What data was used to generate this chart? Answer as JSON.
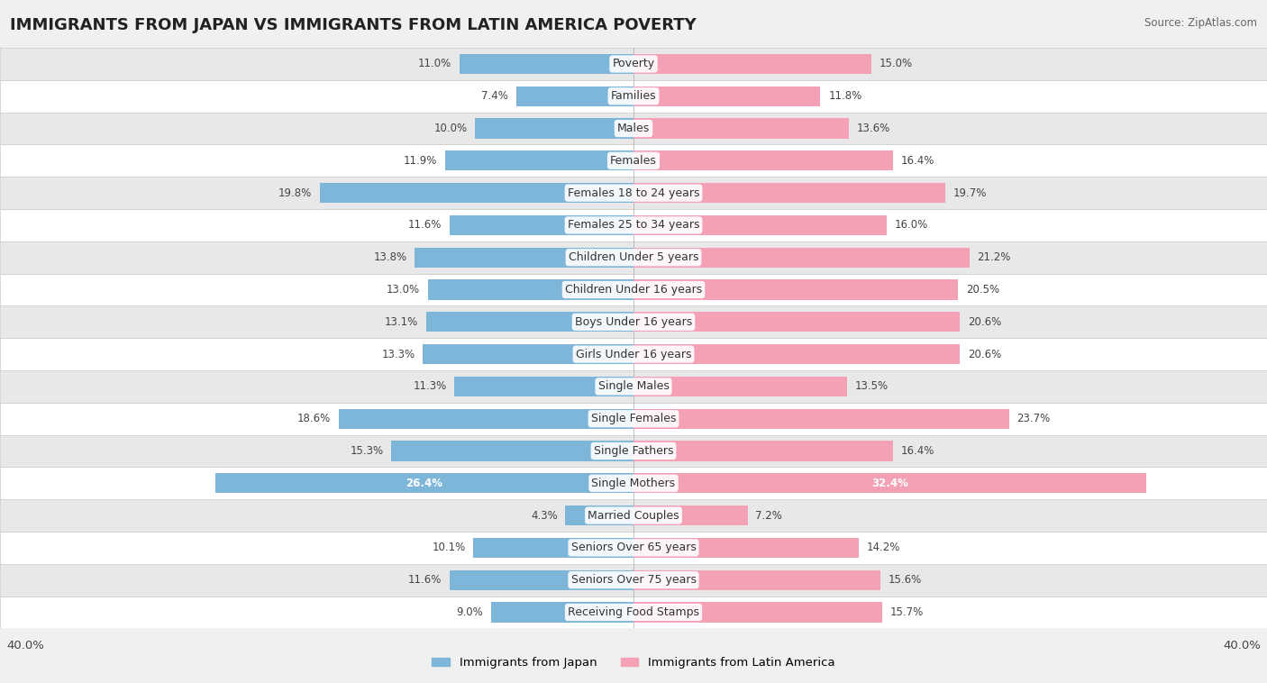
{
  "title": "IMMIGRANTS FROM JAPAN VS IMMIGRANTS FROM LATIN AMERICA POVERTY",
  "source": "Source: ZipAtlas.com",
  "categories": [
    "Poverty",
    "Families",
    "Males",
    "Females",
    "Females 18 to 24 years",
    "Females 25 to 34 years",
    "Children Under 5 years",
    "Children Under 16 years",
    "Boys Under 16 years",
    "Girls Under 16 years",
    "Single Males",
    "Single Females",
    "Single Fathers",
    "Single Mothers",
    "Married Couples",
    "Seniors Over 65 years",
    "Seniors Over 75 years",
    "Receiving Food Stamps"
  ],
  "japan_values": [
    11.0,
    7.4,
    10.0,
    11.9,
    19.8,
    11.6,
    13.8,
    13.0,
    13.1,
    13.3,
    11.3,
    18.6,
    15.3,
    26.4,
    4.3,
    10.1,
    11.6,
    9.0
  ],
  "latam_values": [
    15.0,
    11.8,
    13.6,
    16.4,
    19.7,
    16.0,
    21.2,
    20.5,
    20.6,
    20.6,
    13.5,
    23.7,
    16.4,
    32.4,
    7.2,
    14.2,
    15.6,
    15.7
  ],
  "japan_color": "#7eb6d9",
  "latam_color": "#f4a0b5",
  "japan_label": "Immigrants from Japan",
  "latam_label": "Immigrants from Latin America",
  "bar_height": 0.62,
  "xlim": 40.0,
  "row_colors": [
    "#ffffff",
    "#e8e8e8"
  ],
  "title_fontsize": 13,
  "label_fontsize": 9,
  "value_fontsize": 8.5,
  "axis_label_fontsize": 9.5,
  "white_text_threshold": 0.6
}
